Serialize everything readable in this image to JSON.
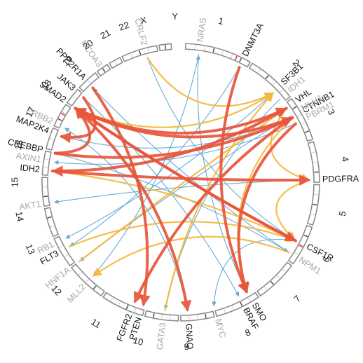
{
  "chromosomes": [
    "1",
    "2",
    "3",
    "4",
    "5",
    "6",
    "7",
    "8",
    "9",
    "10",
    "11",
    "12",
    "13",
    "14",
    "15",
    "16",
    "17",
    "18",
    "19",
    "20",
    "21",
    "22",
    "X",
    "Y"
  ],
  "colors": {
    "ring": "#8c8c8c",
    "ring_dark": "#555555",
    "highlight": "#e0563a",
    "label_dark": "#111111",
    "label_muted": "#a8a8a8",
    "link_red": "#e8553a",
    "link_blue": "#5aa5d3",
    "link_yellow": "#f5b83d"
  },
  "genes": [
    {
      "name": "NRAS",
      "muted": true
    },
    {
      "name": "DNMT3A",
      "muted": false
    },
    {
      "name": "SF3B1",
      "muted": false
    },
    {
      "name": "IDH1",
      "muted": true
    },
    {
      "name": "VHL",
      "muted": false
    },
    {
      "name": "CTNNB1",
      "muted": false
    },
    {
      "name": "MLH1",
      "muted": true
    },
    {
      "name": "PBRM1",
      "muted": true
    },
    {
      "name": "PDGFRA",
      "muted": false
    },
    {
      "name": "CSF1R",
      "muted": false
    },
    {
      "name": "NPM1",
      "muted": true
    },
    {
      "name": "SMO",
      "muted": false
    },
    {
      "name": "BRAF",
      "muted": false
    },
    {
      "name": "MYC",
      "muted": true
    },
    {
      "name": "GNAQ",
      "muted": false
    },
    {
      "name": "GATA3",
      "muted": true
    },
    {
      "name": "PTEN",
      "muted": false
    },
    {
      "name": "FGFR2",
      "muted": false
    },
    {
      "name": "MLL2",
      "muted": true
    },
    {
      "name": "HNF1A",
      "muted": true
    },
    {
      "name": "FLT3",
      "muted": false
    },
    {
      "name": "RB1",
      "muted": true
    },
    {
      "name": "AKT1",
      "muted": true
    },
    {
      "name": "IDH2",
      "muted": false
    },
    {
      "name": "AXIN1",
      "muted": true
    },
    {
      "name": "CREBBP",
      "muted": false
    },
    {
      "name": "MAP2K4",
      "muted": false
    },
    {
      "name": "ERBB2",
      "muted": true
    },
    {
      "name": "SMAD2",
      "muted": false
    },
    {
      "name": "JAK3",
      "muted": false
    },
    {
      "name": "PPP2R1A",
      "muted": false
    },
    {
      "name": "NCOA3",
      "muted": true
    },
    {
      "name": "CRLF2",
      "muted": true
    }
  ],
  "links": [
    {
      "from": "SMAD2",
      "to": "VHL",
      "color": "red"
    },
    {
      "from": "CTNNB1",
      "to": "SMAD2",
      "color": "red"
    },
    {
      "from": "CREBBP",
      "to": "CTNNB1",
      "color": "red"
    },
    {
      "from": "VHL",
      "to": "IDH2",
      "color": "red"
    },
    {
      "from": "CSF1R",
      "to": "SMAD2",
      "color": "red"
    },
    {
      "from": "SMAD2",
      "to": "CSF1R",
      "color": "red"
    },
    {
      "from": "JAK3",
      "to": "MAP2K4",
      "color": "red"
    },
    {
      "from": "PPP2R1A",
      "to": "PTEN",
      "color": "red"
    },
    {
      "from": "DNMT3A",
      "to": "SMO",
      "color": "red"
    },
    {
      "from": "SMAD2",
      "to": "GNAQ",
      "color": "red"
    },
    {
      "from": "CTNNB1",
      "to": "FGFR2",
      "color": "red"
    },
    {
      "from": "PBRM1",
      "to": "SMO",
      "color": "red"
    },
    {
      "from": "IDH2",
      "to": "PDGFRA",
      "color": "red"
    },
    {
      "from": "CREBBP",
      "to": "SMAD2",
      "color": "red"
    },
    {
      "from": "CRLF2",
      "to": "SF3B1",
      "color": "yellow"
    },
    {
      "from": "VHL",
      "to": "PDGFRA",
      "color": "yellow"
    },
    {
      "from": "PDGFRA",
      "to": "CSF1R",
      "color": "yellow"
    },
    {
      "from": "FLT3",
      "to": "CSF1R",
      "color": "yellow"
    },
    {
      "from": "CTNNB1",
      "to": "SMO",
      "color": "yellow"
    },
    {
      "from": "GATA3",
      "to": "SF3B1",
      "color": "yellow"
    },
    {
      "from": "NPM1",
      "to": "MLL2",
      "color": "yellow"
    },
    {
      "from": "IDH2",
      "to": "CSF1R",
      "color": "yellow"
    },
    {
      "from": "SMAD2",
      "to": "SF3B1",
      "color": "yellow"
    },
    {
      "from": "HNF1A",
      "to": "VHL",
      "color": "yellow"
    },
    {
      "from": "SMO",
      "to": "NRAS",
      "color": "blue"
    },
    {
      "from": "CRLF2",
      "to": "CSF1R",
      "color": "blue"
    },
    {
      "from": "NPM1",
      "to": "PPP2R1A",
      "color": "blue"
    },
    {
      "from": "PDGFRA",
      "to": "AKT1",
      "color": "blue"
    },
    {
      "from": "MLH1",
      "to": "HNF1A",
      "color": "blue"
    },
    {
      "from": "DNMT3A",
      "to": "FLT3",
      "color": "blue"
    },
    {
      "from": "CSF1R",
      "to": "MYC",
      "color": "blue"
    },
    {
      "from": "SF3B1",
      "to": "RB1",
      "color": "blue"
    },
    {
      "from": "NRAS",
      "to": "MLL2",
      "color": "blue"
    },
    {
      "from": "GNAQ",
      "to": "ERBB2",
      "color": "blue"
    },
    {
      "from": "PBRM1",
      "to": "AXIN1",
      "color": "blue"
    },
    {
      "from": "IDH1",
      "to": "GATA3",
      "color": "blue"
    },
    {
      "from": "JAK3",
      "to": "BRAF",
      "color": "blue"
    },
    {
      "from": "MAP2K4",
      "to": "CTNNB1",
      "color": "blue"
    },
    {
      "from": "CREBBP",
      "to": "NPM1",
      "color": "blue"
    }
  ]
}
